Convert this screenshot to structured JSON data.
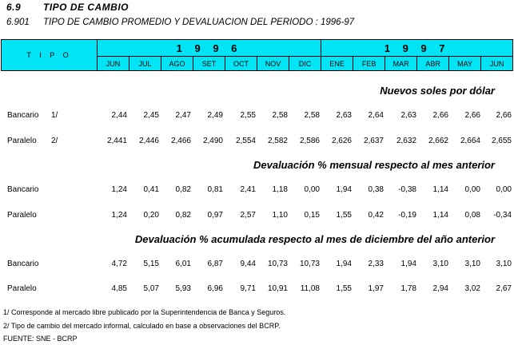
{
  "section": {
    "number": "6.9",
    "title": "TIPO DE CAMBIO"
  },
  "table_title": {
    "number": "6.901",
    "text": "TIPO DE CAMBIO PROMEDIO Y DEVALUACION DEL PERIODO : 1996-97"
  },
  "header": {
    "tipo_label": "T I P O",
    "years": [
      "1 9 9 6",
      "1 9 9 7"
    ],
    "months": [
      "JUN",
      "JUL",
      "AGO",
      "SET",
      "OCT",
      "NOV",
      "DIC",
      "ENE",
      "FEB",
      "MAR",
      "ABR",
      "MAY",
      "JUN"
    ],
    "header_color": "#00e4f6"
  },
  "sections": [
    {
      "title": "Nuevos soles por dólar",
      "rows": [
        {
          "label": "Bancario",
          "note": "1/",
          "values": [
            "2,44",
            "2,45",
            "2,47",
            "2,49",
            "2,55",
            "2,58",
            "2,58",
            "2,63",
            "2,64",
            "2,63",
            "2,66",
            "2,66",
            "2,66"
          ]
        },
        {
          "label": "Paralelo",
          "note": "2/",
          "values": [
            "2,441",
            "2,446",
            "2,466",
            "2,490",
            "2,554",
            "2,582",
            "2,586",
            "2,626",
            "2,637",
            "2,632",
            "2,662",
            "2,664",
            "2,655"
          ]
        }
      ]
    },
    {
      "title": "Devaluación % mensual respecto al mes anterior",
      "rows": [
        {
          "label": "Bancario",
          "note": "",
          "values": [
            "1,24",
            "0,41",
            "0,82",
            "0,81",
            "2,41",
            "1,18",
            "0,00",
            "1,94",
            "0,38",
            "-0,38",
            "1,14",
            "0,00",
            "0,00"
          ]
        },
        {
          "label": "Paralelo",
          "note": "",
          "values": [
            "1,24",
            "0,20",
            "0,82",
            "0,97",
            "2,57",
            "1,10",
            "0,15",
            "1,55",
            "0,42",
            "-0,19",
            "1,14",
            "0,08",
            "-0,34"
          ]
        }
      ]
    },
    {
      "title": "Devaluación % acumulada respecto al mes de diciembre del año anterior",
      "rows": [
        {
          "label": "Bancario",
          "note": "",
          "values": [
            "4,72",
            "5,15",
            "6,01",
            "6,87",
            "9,44",
            "10,73",
            "10,73",
            "1,94",
            "2,33",
            "1,94",
            "3,10",
            "3,10",
            "3,10"
          ]
        },
        {
          "label": "Paralelo",
          "note": "",
          "values": [
            "4,85",
            "5,07",
            "5,93",
            "6,96",
            "9,71",
            "10,91",
            "11,08",
            "1,55",
            "1,97",
            "1,78",
            "2,94",
            "3,02",
            "2,67"
          ]
        }
      ]
    }
  ],
  "footnotes": [
    "1/ Corresponde al mercado libre publicado por la Superintendencia de Banca y Seguros.",
    "2/ Tipo de cambio del mercado informal, calculado en base a observaciones del BCRP.",
    "FUENTE: SNE - BCRP"
  ]
}
